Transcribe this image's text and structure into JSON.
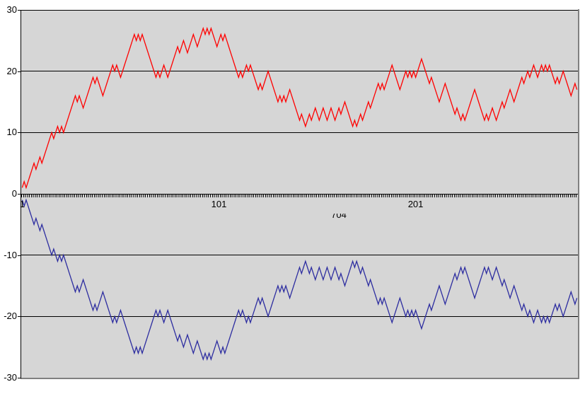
{
  "page_bg": "#FFFFFF",
  "chart_data": {
    "type": "line",
    "title": "",
    "xlabel_partial": "704",
    "n_points": 283,
    "x_start": 1,
    "xticks": [
      {
        "category": 1,
        "label": "1"
      },
      {
        "category": 101,
        "label": "101"
      },
      {
        "category": 201,
        "label": "201"
      }
    ],
    "yticks": [
      30,
      20,
      10,
      0,
      -10,
      -20,
      -30
    ],
    "ylim": [
      -30,
      30
    ],
    "grid": true,
    "legend": "none",
    "plot_bg": "#D6D6D6",
    "grid_color": "#000000",
    "frame_color": "#808080",
    "series": [
      {
        "name": "series-1-red",
        "color": "#FF0000",
        "values": [
          1,
          2,
          1,
          2,
          3,
          4,
          5,
          4,
          5,
          6,
          5,
          6,
          7,
          8,
          9,
          10,
          9,
          10,
          11,
          10,
          11,
          10,
          11,
          12,
          13,
          14,
          15,
          16,
          15,
          16,
          15,
          14,
          15,
          16,
          17,
          18,
          19,
          18,
          19,
          18,
          17,
          16,
          17,
          18,
          19,
          20,
          21,
          20,
          21,
          20,
          19,
          20,
          21,
          22,
          23,
          24,
          25,
          26,
          25,
          26,
          25,
          26,
          25,
          24,
          23,
          22,
          21,
          20,
          19,
          20,
          19,
          20,
          21,
          20,
          19,
          20,
          21,
          22,
          23,
          24,
          23,
          24,
          25,
          24,
          23,
          24,
          25,
          26,
          25,
          24,
          25,
          26,
          27,
          26,
          27,
          26,
          27,
          26,
          25,
          24,
          25,
          26,
          25,
          26,
          25,
          24,
          23,
          22,
          21,
          20,
          19,
          20,
          19,
          20,
          21,
          20,
          21,
          20,
          19,
          18,
          17,
          18,
          17,
          18,
          19,
          20,
          19,
          18,
          17,
          16,
          15,
          16,
          15,
          16,
          15,
          16,
          17,
          16,
          15,
          14,
          13,
          12,
          13,
          12,
          11,
          12,
          13,
          12,
          13,
          14,
          13,
          12,
          13,
          14,
          13,
          12,
          13,
          14,
          13,
          12,
          13,
          14,
          13,
          14,
          15,
          14,
          13,
          12,
          11,
          12,
          11,
          12,
          13,
          12,
          13,
          14,
          15,
          14,
          15,
          16,
          17,
          18,
          17,
          18,
          17,
          18,
          19,
          20,
          21,
          20,
          19,
          18,
          17,
          18,
          19,
          20,
          19,
          20,
          19,
          20,
          19,
          20,
          21,
          22,
          21,
          20,
          19,
          18,
          19,
          18,
          17,
          16,
          15,
          16,
          17,
          18,
          17,
          16,
          15,
          14,
          13,
          14,
          13,
          12,
          13,
          12,
          13,
          14,
          15,
          16,
          17,
          16,
          15,
          14,
          13,
          12,
          13,
          12,
          13,
          14,
          13,
          12,
          13,
          14,
          15,
          14,
          15,
          16,
          17,
          16,
          15,
          16,
          17,
          18,
          19,
          18,
          19,
          20,
          19,
          20,
          21,
          20,
          19,
          20,
          21,
          20,
          21,
          20,
          21,
          20,
          19,
          18,
          19,
          18,
          19,
          20,
          19,
          18,
          17,
          16,
          17,
          18,
          17
        ]
      },
      {
        "name": "series-2-blue",
        "color": "#2D2DA0",
        "values": [
          -1,
          -2,
          -1,
          -2,
          -3,
          -4,
          -5,
          -4,
          -5,
          -6,
          -5,
          -6,
          -7,
          -8,
          -9,
          -10,
          -9,
          -10,
          -11,
          -10,
          -11,
          -10,
          -11,
          -12,
          -13,
          -14,
          -15,
          -16,
          -15,
          -16,
          -15,
          -14,
          -15,
          -16,
          -17,
          -18,
          -19,
          -18,
          -19,
          -18,
          -17,
          -16,
          -17,
          -18,
          -19,
          -20,
          -21,
          -20,
          -21,
          -20,
          -19,
          -20,
          -21,
          -22,
          -23,
          -24,
          -25,
          -26,
          -25,
          -26,
          -25,
          -26,
          -25,
          -24,
          -23,
          -22,
          -21,
          -20,
          -19,
          -20,
          -19,
          -20,
          -21,
          -20,
          -19,
          -20,
          -21,
          -22,
          -23,
          -24,
          -23,
          -24,
          -25,
          -24,
          -23,
          -24,
          -25,
          -26,
          -25,
          -24,
          -25,
          -26,
          -27,
          -26,
          -27,
          -26,
          -27,
          -26,
          -25,
          -24,
          -25,
          -26,
          -25,
          -26,
          -25,
          -24,
          -23,
          -22,
          -21,
          -20,
          -19,
          -20,
          -19,
          -20,
          -21,
          -20,
          -21,
          -20,
          -19,
          -18,
          -17,
          -18,
          -17,
          -18,
          -19,
          -20,
          -19,
          -18,
          -17,
          -16,
          -15,
          -16,
          -15,
          -16,
          -15,
          -16,
          -17,
          -16,
          -15,
          -14,
          -13,
          -12,
          -13,
          -12,
          -11,
          -12,
          -13,
          -12,
          -13,
          -14,
          -13,
          -12,
          -13,
          -14,
          -13,
          -12,
          -13,
          -14,
          -13,
          -12,
          -13,
          -14,
          -13,
          -14,
          -15,
          -14,
          -13,
          -12,
          -11,
          -12,
          -11,
          -12,
          -13,
          -12,
          -13,
          -14,
          -15,
          -14,
          -15,
          -16,
          -17,
          -18,
          -17,
          -18,
          -17,
          -18,
          -19,
          -20,
          -21,
          -20,
          -19,
          -18,
          -17,
          -18,
          -19,
          -20,
          -19,
          -20,
          -19,
          -20,
          -19,
          -20,
          -21,
          -22,
          -21,
          -20,
          -19,
          -18,
          -19,
          -18,
          -17,
          -16,
          -15,
          -16,
          -17,
          -18,
          -17,
          -16,
          -15,
          -14,
          -13,
          -14,
          -13,
          -12,
          -13,
          -12,
          -13,
          -14,
          -15,
          -16,
          -17,
          -16,
          -15,
          -14,
          -13,
          -12,
          -13,
          -12,
          -13,
          -14,
          -13,
          -12,
          -13,
          -14,
          -15,
          -14,
          -15,
          -16,
          -17,
          -16,
          -15,
          -16,
          -17,
          -18,
          -19,
          -18,
          -19,
          -20,
          -19,
          -20,
          -21,
          -20,
          -19,
          -20,
          -21,
          -20,
          -21,
          -20,
          -21,
          -20,
          -19,
          -18,
          -19,
          -18,
          -19,
          -20,
          -19,
          -18,
          -17,
          -16,
          -17,
          -18,
          -17
        ]
      }
    ]
  }
}
